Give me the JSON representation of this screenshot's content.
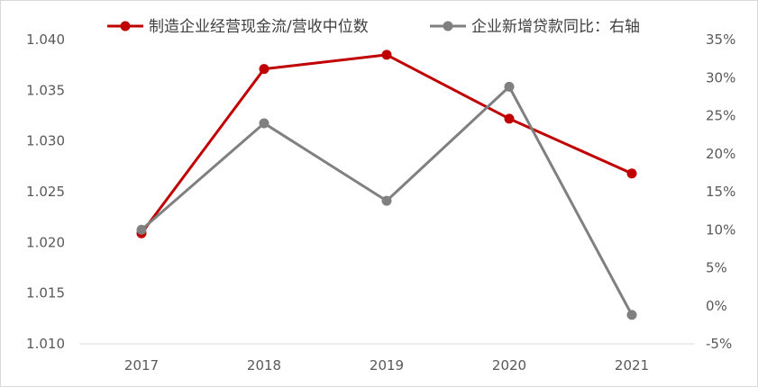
{
  "chart_data": {
    "type": "line",
    "title": "",
    "categories": [
      "2017",
      "2018",
      "2019",
      "2020",
      "2021"
    ],
    "series": [
      {
        "name": "制造企业经营现金流/营收中位数",
        "axis": "left",
        "color": "#C00000",
        "values": [
          1.0209,
          1.0371,
          1.0385,
          1.0322,
          1.0268
        ]
      },
      {
        "name": "企业新增贷款同比：右轴",
        "axis": "right",
        "color": "#808080",
        "values": [
          10.0,
          24.0,
          13.8,
          28.8,
          -1.2
        ]
      }
    ],
    "y_left": {
      "min": 1.01,
      "max": 1.04,
      "step": 0.005,
      "tick_labels": [
        "1.010",
        "1.015",
        "1.020",
        "1.025",
        "1.030",
        "1.035",
        "1.040"
      ]
    },
    "y_right": {
      "min": -5,
      "max": 35,
      "step": 5,
      "tick_labels": [
        "-5%",
        "0%",
        "5%",
        "10%",
        "15%",
        "20%",
        "25%",
        "30%",
        "35%"
      ]
    },
    "legend_position": "top",
    "grid": false
  }
}
